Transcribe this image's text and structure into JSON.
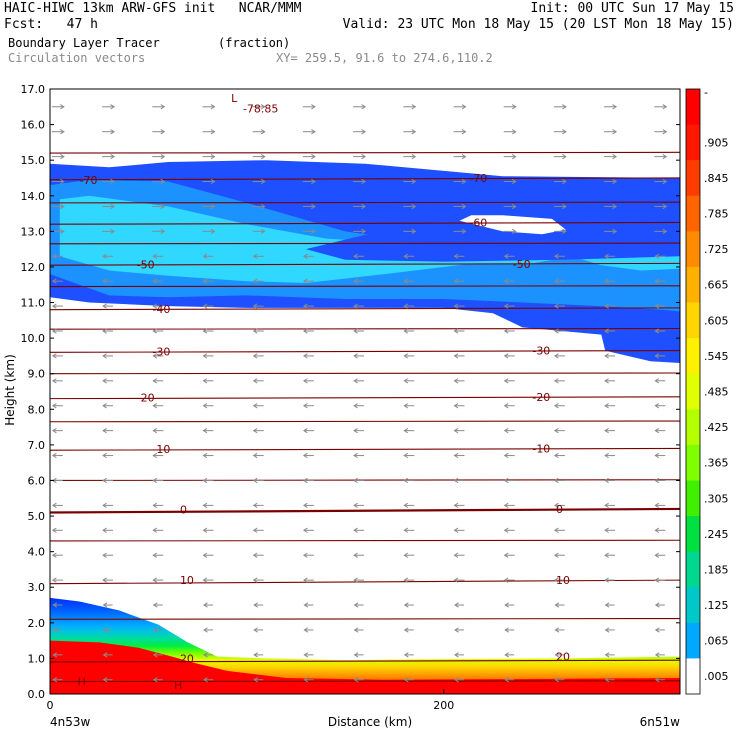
{
  "header": {
    "line1_left": "HAIC-HIWC 13km ARW-GFS init   NCAR/MMM",
    "line1_right": "Init: 00 UTC Sun 17 May 15",
    "line2_left": "Fcst:   47 h",
    "line2_right": "Valid: 23 UTC Mon 18 May 15 (20 LST Mon 18 May 15)",
    "field_name": "Boundary Layer Tracer",
    "field_unit": "(fraction)",
    "overlay_name": "Circulation vectors",
    "xy_range": "XY= 259.5, 91.6 to 274.6,110.2"
  },
  "colors": {
    "contour_line": "#7a0000",
    "vector": "#8a8a8a",
    "bl_gradient": [
      "#ff0000",
      "#ff3000",
      "#ff7000",
      "#ffa500",
      "#ffd800",
      "#dcff00",
      "#70ff00",
      "#00ef40",
      "#00dd99",
      "#00c8d8",
      "#00aaff",
      "#0088ff",
      "#0066ff",
      "#0048ff",
      "#0030ff"
    ],
    "upper_layers": [
      "#1e50ff",
      "#1c92ff",
      "#30d8ff"
    ]
  },
  "chart_data": {
    "type": "cross-section",
    "xlabel": "Distance (km)",
    "ylabel": "Height (km)",
    "xlim": [
      0,
      320
    ],
    "ylim": [
      0,
      17
    ],
    "x_ticks": [
      0,
      200
    ],
    "x_tick_labels": [
      "0",
      "200"
    ],
    "y_ticks": [
      0,
      1,
      2,
      3,
      4,
      5,
      6,
      7,
      8,
      9,
      10,
      11,
      12,
      13,
      14,
      15,
      16,
      17
    ],
    "y_tick_labels": [
      "0.0",
      "1.0",
      "2.0",
      "3.0",
      "4.0",
      "5.0",
      "6.0",
      "7.0",
      "8.0",
      "9.0",
      "10.0",
      "11.0",
      "12.0",
      "13.0",
      "14.0",
      "15.0",
      "16.0",
      "17.0"
    ],
    "endpoint_labels": [
      "4n53w",
      "6n51w"
    ],
    "colorbar": {
      "ticks": [
        "-",
        ".905",
        ".845",
        ".785",
        ".725",
        ".665",
        ".605",
        ".545",
        ".485",
        ".425",
        ".365",
        ".305",
        ".245",
        ".185",
        ".125",
        ".065",
        ".005"
      ],
      "colors": [
        "#ff0000",
        "#ff1800",
        "#ff3c00",
        "#ff6400",
        "#ff8c00",
        "#ffb000",
        "#ffd400",
        "#fff000",
        "#e0ff00",
        "#b4ff00",
        "#80ff00",
        "#40f000",
        "#00e040",
        "#00d890",
        "#00c8c8",
        "#00a8ff",
        "#ffffff"
      ]
    },
    "temperature_contours": [
      {
        "label": "20",
        "y": [
          0.9,
          0.95
        ],
        "label_positions": [
          [
            66,
            1.0
          ],
          [
            257,
            1.05
          ]
        ]
      },
      {
        "label": "10",
        "y": [
          3.1,
          3.2
        ],
        "label_positions": [
          [
            66,
            3.2
          ],
          [
            257,
            3.2
          ]
        ]
      },
      {
        "label": "0",
        "y": [
          5.1,
          5.2
        ],
        "label_positions": [
          [
            66,
            5.18
          ],
          [
            257,
            5.2
          ]
        ]
      },
      {
        "label": "-10",
        "y": [
          6.85,
          6.9
        ],
        "label_positions": [
          [
            52,
            6.88
          ],
          [
            245,
            6.9
          ]
        ]
      },
      {
        "label": "-20",
        "y": [
          8.3,
          8.35
        ],
        "label_positions": [
          [
            44,
            8.33
          ],
          [
            245,
            8.35
          ]
        ]
      },
      {
        "label": "-30",
        "y": [
          9.6,
          9.65
        ],
        "label_positions": [
          [
            52,
            9.62
          ],
          [
            245,
            9.65
          ]
        ]
      },
      {
        "label": "-40",
        "y": [
          10.8,
          10.85
        ],
        "label_positions": [
          [
            52,
            10.82
          ]
        ]
      },
      {
        "label": "-50",
        "y": [
          12.05,
          12.1
        ],
        "label_positions": [
          [
            44,
            12.07
          ],
          [
            235,
            12.08
          ]
        ]
      },
      {
        "label": "-60",
        "y": [
          13.2,
          13.25
        ],
        "label_positions": [
          [
            213,
            13.25
          ]
        ]
      },
      {
        "label": "-70",
        "y": [
          14.45,
          14.5
        ],
        "label_positions": [
          [
            15,
            14.45
          ],
          [
            213,
            14.5
          ]
        ]
      }
    ],
    "extra_isotherms_y": [
      0.35,
      2.1,
      4.3,
      6.0,
      7.65,
      9.0,
      10.25,
      11.45,
      12.65,
      13.8,
      15.2
    ],
    "annotations": [
      {
        "text": "L",
        "x": 92,
        "y": 16.75
      },
      {
        "text": "-78.85",
        "x": 98,
        "y": 16.45
      },
      {
        "text": "H",
        "x": 14,
        "y": 0.35
      },
      {
        "text": "H",
        "x": 63,
        "y": 0.25
      }
    ],
    "vector_rows_upper_eastward_km": [
      12.5,
      17.0
    ],
    "vector_rows_lower_westward_km": [
      0.0,
      11.0
    ]
  }
}
